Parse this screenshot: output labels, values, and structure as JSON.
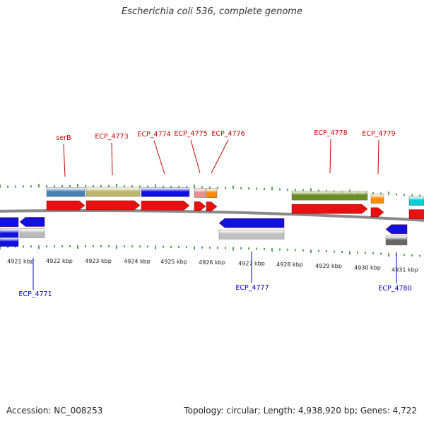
{
  "title": "Escherichia coli 536, complete genome",
  "footer": {
    "accession_label": "Accession:",
    "accession": "NC_008253",
    "topology_label": "Topology:",
    "topology": "circular",
    "length_label": "Length:",
    "length": "4,938,920 bp",
    "genes_label": "Genes:",
    "genes": "4,722"
  },
  "colors": {
    "forward_cds": "#e81010",
    "reverse_cds": "#1010e0",
    "forward_label": "#cc0000",
    "reverse_label": "#0000cc",
    "backbone": "#8a8a8a",
    "tick": "#2e8b2e",
    "scale_text": "#222222"
  },
  "scale": {
    "unit": "kbp",
    "ticks": [
      "4921 kbp",
      "4922 kbp",
      "4923 kbp",
      "4924 kbp",
      "4925 kbp",
      "4926 kbp",
      "4927 kbp",
      "4928 kbp",
      "4929 kbp",
      "4930 kbp",
      "4931 kbp"
    ]
  },
  "forward_labels": [
    "serB",
    "ECP_4773",
    "ECP_4774",
    "ECP_4775",
    "ECP_4776",
    "ECP_4778",
    "ECP_4779"
  ],
  "reverse_labels": [
    "ECP_4771",
    "ECP_4777",
    "ECP_4780"
  ],
  "forward_features": [
    {
      "name": "serB",
      "cog_color": "#4682b4"
    },
    {
      "name": "ECP_4773",
      "cog_color": "#bdb76b"
    },
    {
      "name": "ECP_4774",
      "cog_color": "#1010e0"
    },
    {
      "name": "ECP_4775",
      "cog_color": "#e89090"
    },
    {
      "name": "ECP_4776",
      "cog_color": "#ff8c00"
    },
    {
      "name": "ECP_4778",
      "cog_color": "#6b8e23"
    },
    {
      "name": "ECP_4779",
      "cog_color": "#ff8c00"
    },
    {
      "name": "",
      "cog_color": "#00ced1"
    }
  ],
  "reverse_features": [
    {
      "name": "",
      "cog_color": "#1010e0"
    },
    {
      "name": "ECP_4771",
      "cog_color": "#bbbbbb"
    },
    {
      "name": "ECP_4777",
      "cog_color": "#c0c0c0"
    },
    {
      "name": "ECP_4780",
      "cog_color": "#666666"
    }
  ]
}
